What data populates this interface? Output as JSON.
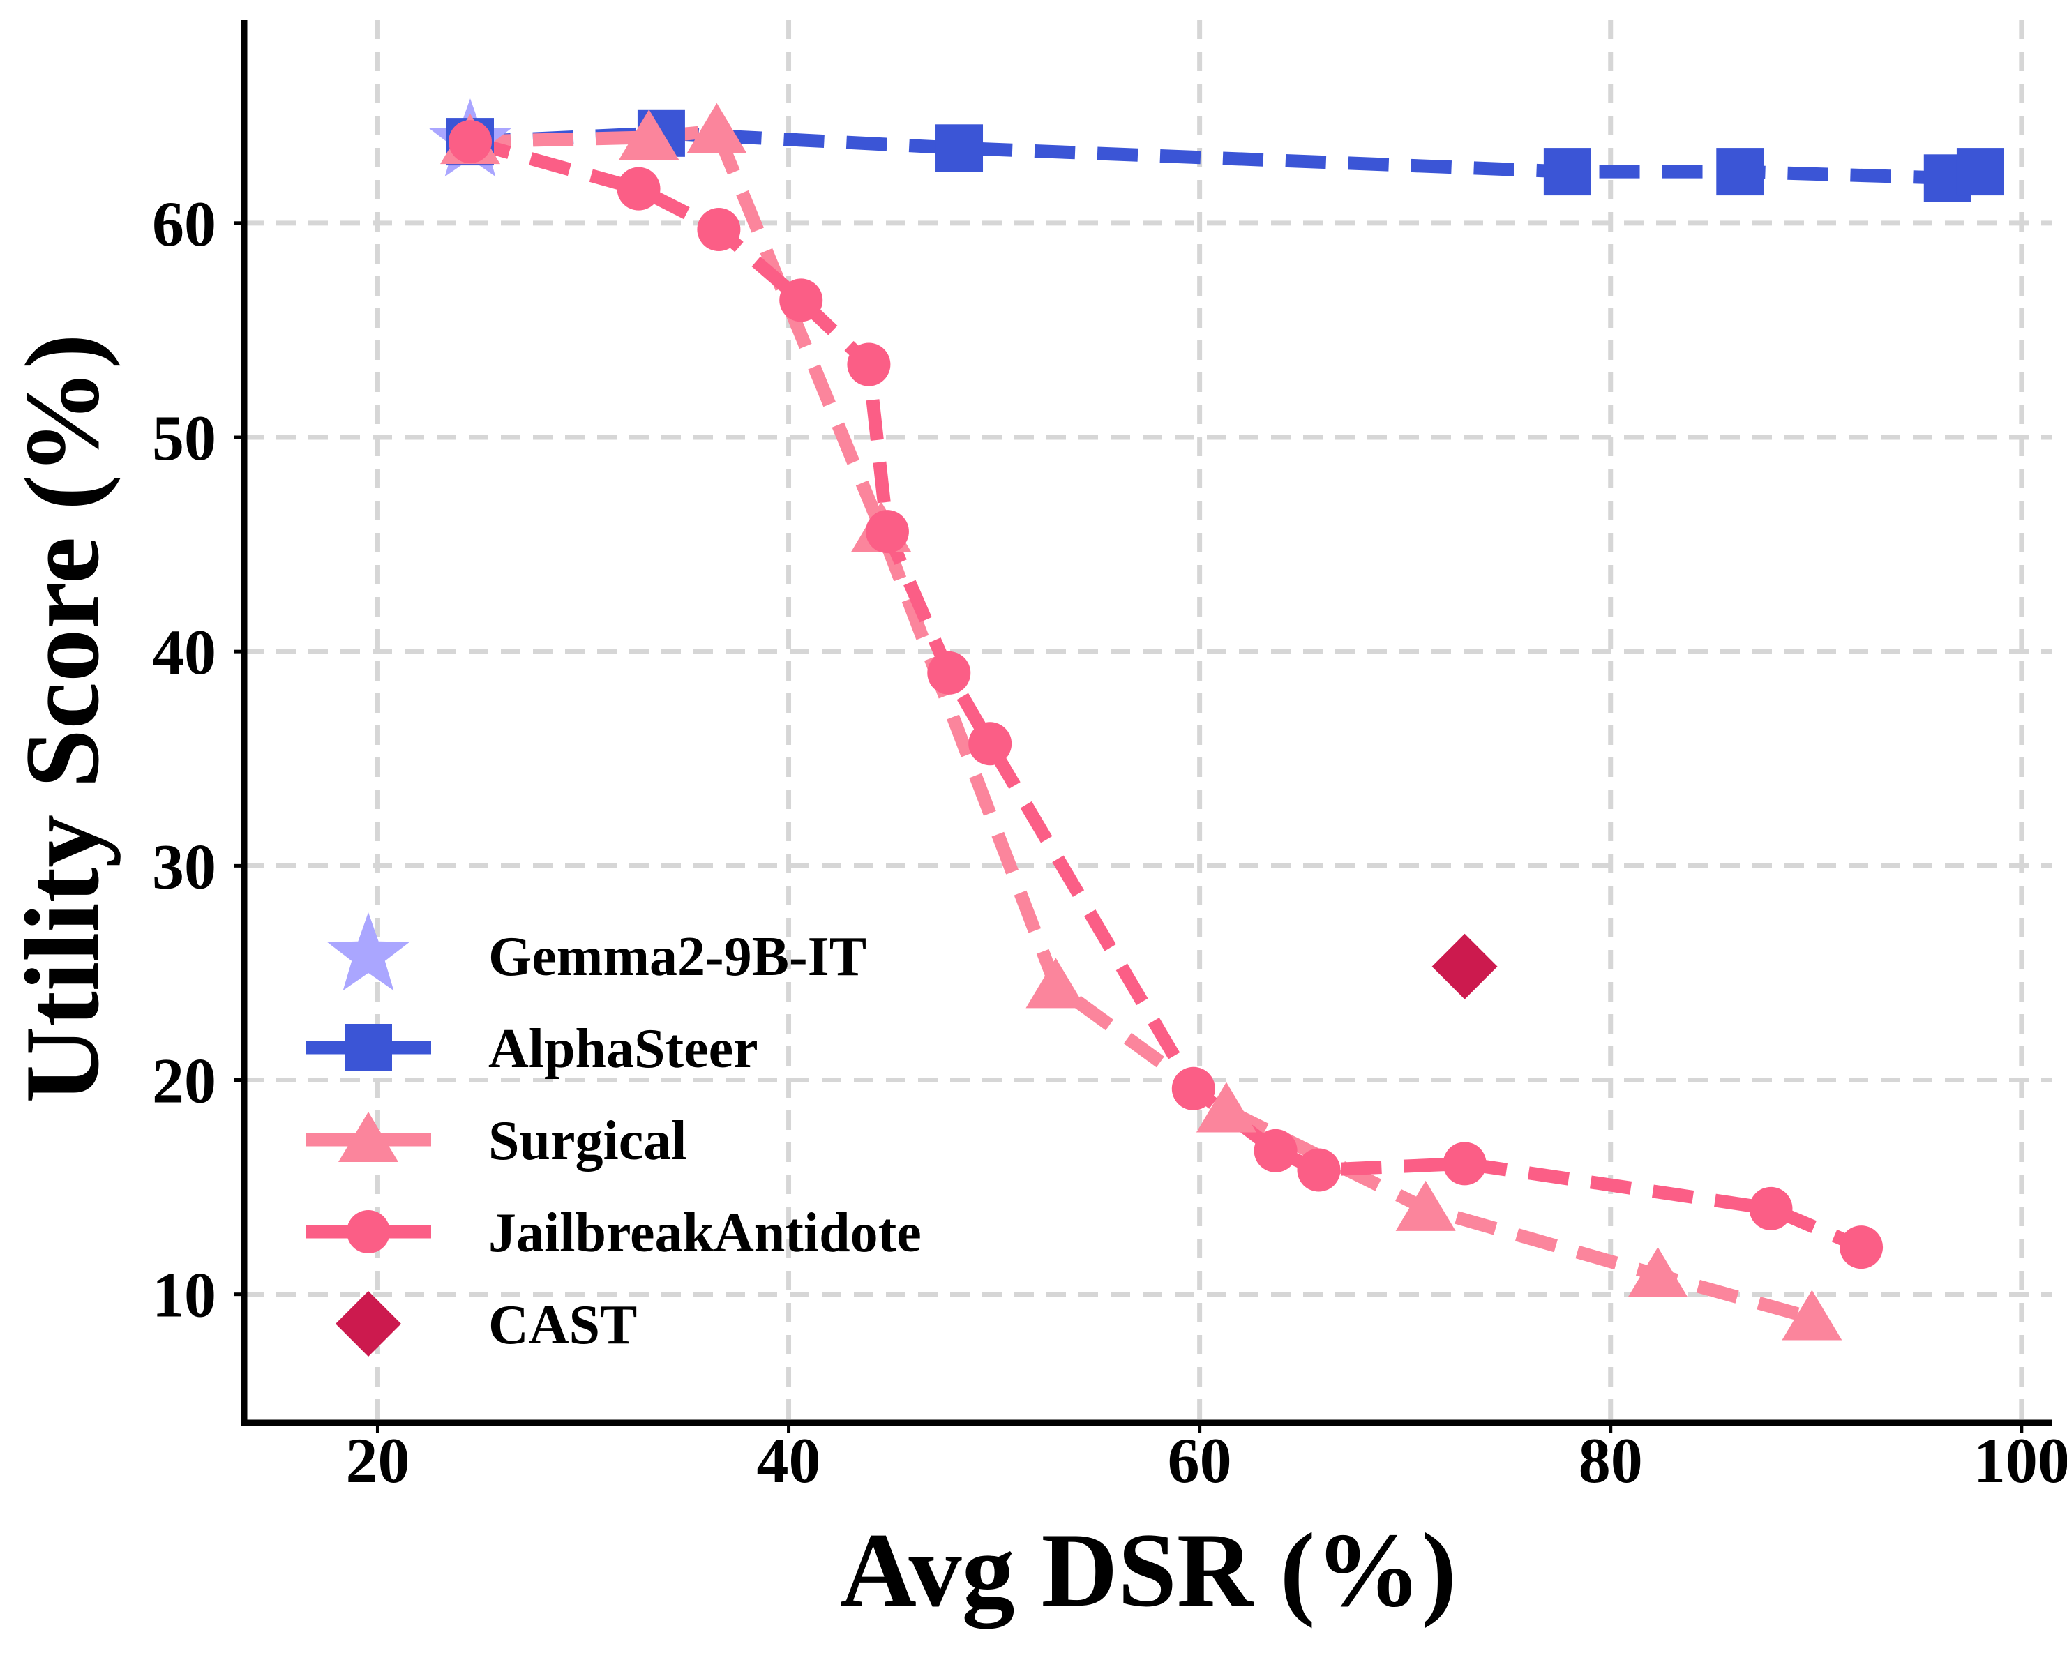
{
  "chart_data": {
    "type": "line",
    "title": "",
    "xlabel": "Avg DSR (%)",
    "ylabel": "Utility Score (%)",
    "xlim": [
      13.5,
      101.5
    ],
    "ylim": [
      4,
      69.5
    ],
    "xticks": [
      20,
      40,
      60,
      80,
      100
    ],
    "yticks": [
      10,
      20,
      30,
      40,
      50,
      60
    ],
    "grid": true,
    "legend_position": "lower-left",
    "series": [
      {
        "name": "Gemma2-9B-IT",
        "marker": "star",
        "color": "#aaa6ff",
        "line": false,
        "x": [
          24.5
        ],
        "y": [
          63.8
        ]
      },
      {
        "name": "AlphaSteer",
        "marker": "square",
        "color": "#3b55d6",
        "line": true,
        "x": [
          24.5,
          33.8,
          48.3,
          77.9,
          86.3,
          96.4,
          98.0
        ],
        "y": [
          63.8,
          64.2,
          63.5,
          62.4,
          62.4,
          62.1,
          62.4
        ]
      },
      {
        "name": "Surgical",
        "marker": "triangle",
        "color": "#fb859c",
        "line": true,
        "x": [
          24.5,
          33.2,
          36.5,
          44.5,
          53.0,
          61.3,
          71.0,
          82.3,
          89.8
        ],
        "y": [
          63.8,
          64.0,
          64.3,
          45.7,
          24.4,
          18.6,
          14.0,
          10.9,
          8.9
        ]
      },
      {
        "name": "JailbreakAntidote",
        "marker": "circle",
        "color": "#fb5e86",
        "line": true,
        "x": [
          24.5,
          32.7,
          36.6,
          40.6,
          43.9,
          44.8,
          47.8,
          49.8,
          59.7,
          63.7,
          65.8,
          72.9,
          87.8,
          92.2
        ],
        "y": [
          63.8,
          61.6,
          59.7,
          56.4,
          53.4,
          45.6,
          39.0,
          35.7,
          19.6,
          16.7,
          15.8,
          16.1,
          14.0,
          12.2
        ]
      },
      {
        "name": "CAST",
        "marker": "diamond",
        "color": "#cc1a4e",
        "line": false,
        "x": [
          72.9
        ],
        "y": [
          25.3
        ]
      }
    ]
  }
}
